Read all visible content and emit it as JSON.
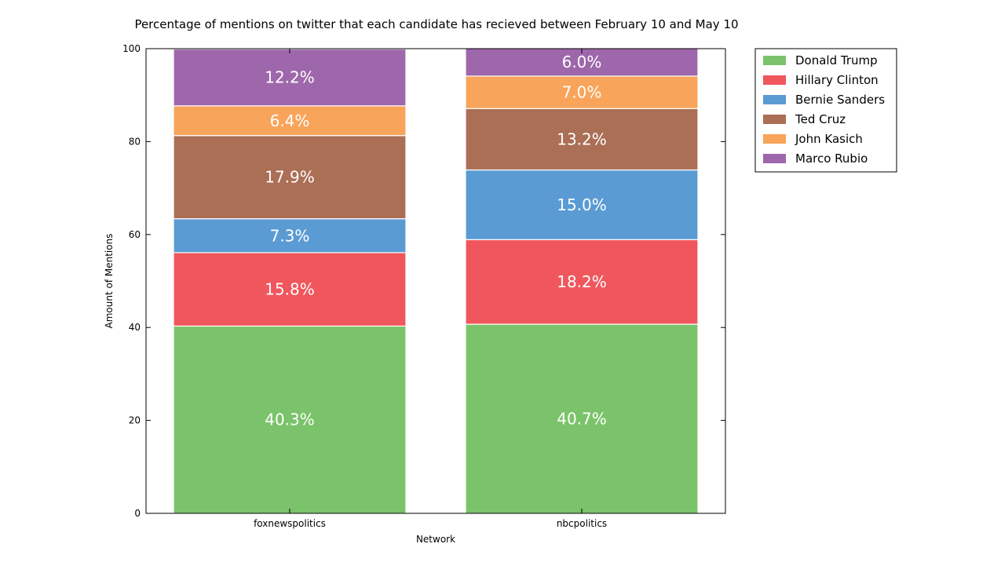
{
  "chart_data": {
    "type": "bar",
    "stacked": true,
    "title": "Percentage of mentions on twitter that each candidate has recieved between February 10 and May 10",
    "xlabel": "Network",
    "ylabel": "Amount of Mentions",
    "ylim": [
      0,
      100
    ],
    "yticks": [
      0,
      20,
      40,
      60,
      80,
      100
    ],
    "categories": [
      "foxnewspolitics",
      "nbcpolitics"
    ],
    "series": [
      {
        "name": "Donald Trump",
        "color": "#7bc36a",
        "values": [
          40.3,
          40.7
        ],
        "labels": [
          "40.3%",
          "40.7%"
        ]
      },
      {
        "name": "Hillary Clinton",
        "color": "#f0575d",
        "values": [
          15.8,
          18.2
        ],
        "labels": [
          "15.8%",
          "18.2%"
        ]
      },
      {
        "name": "Bernie Sanders",
        "color": "#5a9bd4",
        "values": [
          7.3,
          15.0
        ],
        "labels": [
          "7.3%",
          "15.0%"
        ]
      },
      {
        "name": "Ted Cruz",
        "color": "#ab6f56",
        "values": [
          17.9,
          13.2
        ],
        "labels": [
          "17.9%",
          "13.2%"
        ]
      },
      {
        "name": "John Kasich",
        "color": "#f8a45a",
        "values": [
          6.4,
          7.0
        ],
        "labels": [
          "6.4%",
          "7.0%"
        ]
      },
      {
        "name": "Marco Rubio",
        "color": "#9e67ab",
        "values": [
          12.2,
          6.0
        ],
        "labels": [
          "12.2%",
          "6.0%"
        ]
      }
    ],
    "legend_position": "outside-right",
    "grid": false
  }
}
